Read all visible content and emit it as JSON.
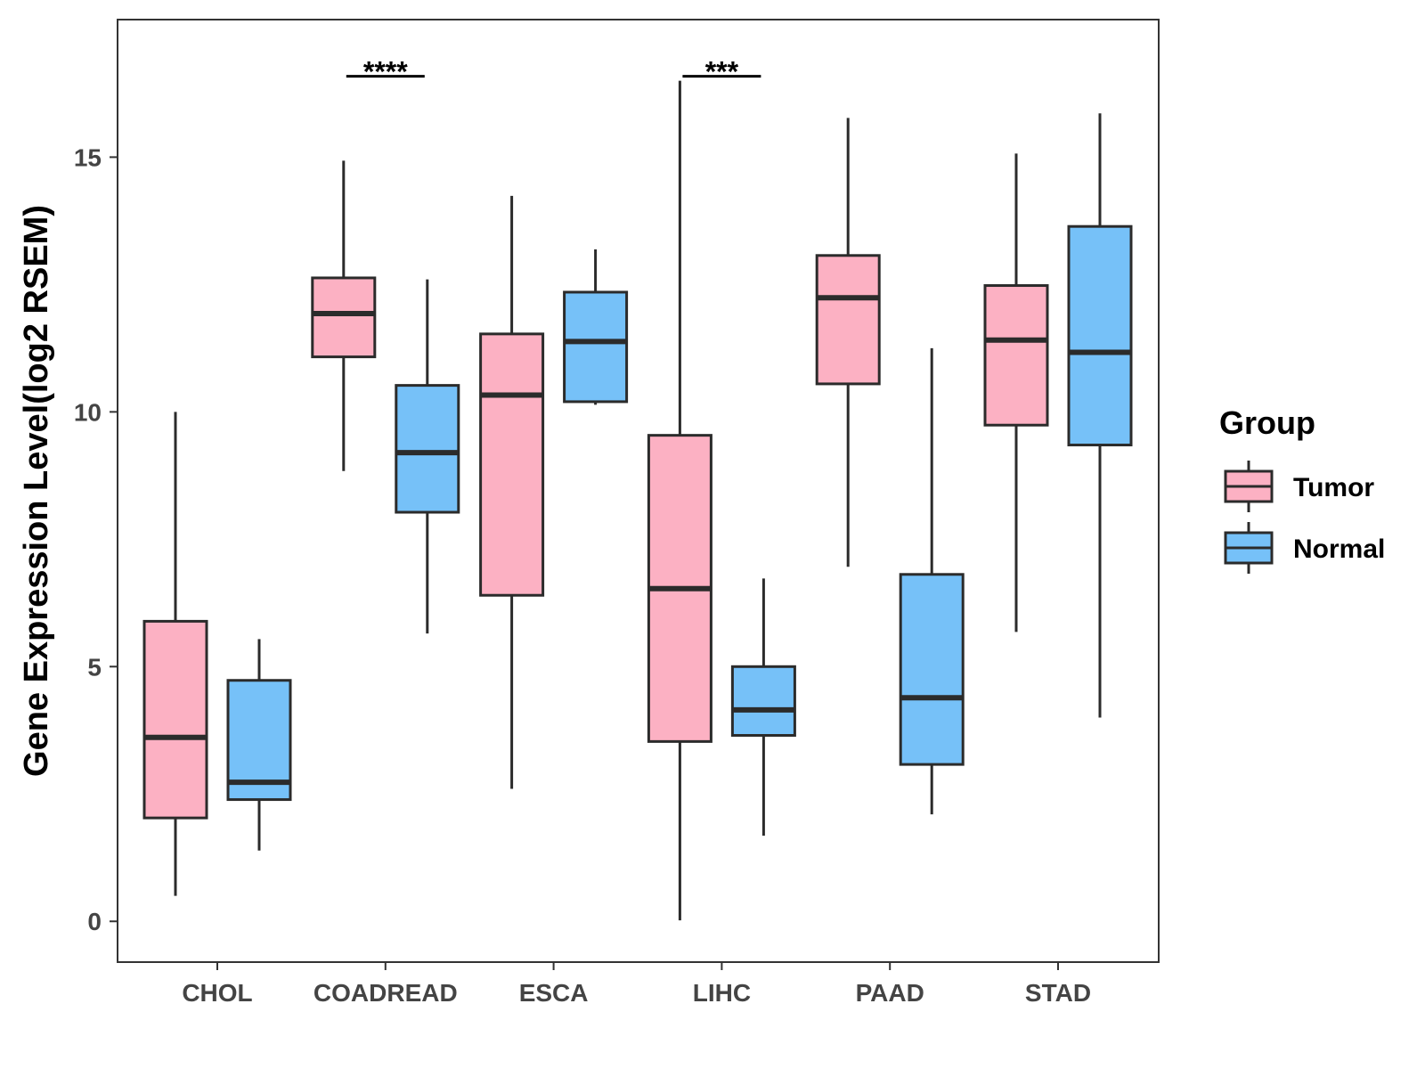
{
  "chart_data": {
    "type": "boxplot",
    "title": "",
    "xlabel": "",
    "ylabel": "Gene Expression Level(log2 RSEM)",
    "ylim": [
      -0.8,
      17.7
    ],
    "yticks": [
      0,
      5,
      10,
      15
    ],
    "categories": [
      "CHOL",
      "COADREAD",
      "ESCA",
      "LIHC",
      "PAAD",
      "STAD"
    ],
    "legend": {
      "title": "Group",
      "position": "right",
      "entries": [
        {
          "name": "Tumor",
          "color": "#fcb1c3"
        },
        {
          "name": "Normal",
          "color": "#76c1f8"
        }
      ]
    },
    "series": [
      {
        "name": "Tumor",
        "color": "#fcb1c3",
        "boxes": [
          {
            "category": "CHOL",
            "min": 0.5,
            "q1": 2.03,
            "median": 3.61,
            "q3": 5.89,
            "max": 10.0
          },
          {
            "category": "COADREAD",
            "min": 8.84,
            "q1": 11.08,
            "median": 11.93,
            "q3": 12.63,
            "max": 14.93
          },
          {
            "category": "ESCA",
            "min": 2.6,
            "q1": 6.4,
            "median": 10.33,
            "q3": 11.53,
            "max": 14.24
          },
          {
            "category": "LIHC",
            "min": 0.02,
            "q1": 3.53,
            "median": 6.53,
            "q3": 9.54,
            "max": 16.5
          },
          {
            "category": "PAAD",
            "min": 6.96,
            "q1": 10.55,
            "median": 12.24,
            "q3": 13.07,
            "max": 15.77
          },
          {
            "category": "STAD",
            "min": 5.68,
            "q1": 9.74,
            "median": 11.41,
            "q3": 12.48,
            "max": 15.07
          }
        ]
      },
      {
        "name": "Normal",
        "color": "#76c1f8",
        "boxes": [
          {
            "category": "CHOL",
            "min": 1.39,
            "q1": 2.39,
            "median": 2.73,
            "q3": 4.73,
            "max": 5.54
          },
          {
            "category": "COADREAD",
            "min": 5.65,
            "q1": 8.03,
            "median": 9.2,
            "q3": 10.52,
            "max": 12.6
          },
          {
            "category": "ESCA",
            "min": 10.14,
            "q1": 10.2,
            "median": 11.38,
            "q3": 12.35,
            "max": 13.19
          },
          {
            "category": "LIHC",
            "min": 1.68,
            "q1": 3.65,
            "median": 4.15,
            "q3": 5.0,
            "max": 6.73
          },
          {
            "category": "PAAD",
            "min": 2.1,
            "q1": 3.08,
            "median": 4.39,
            "q3": 6.81,
            "max": 11.25
          },
          {
            "category": "STAD",
            "min": 4.0,
            "q1": 9.35,
            "median": 11.17,
            "q3": 13.64,
            "max": 15.86
          }
        ]
      }
    ],
    "annotations": [
      {
        "category": "COADREAD",
        "label": "****",
        "y": 16.5
      },
      {
        "category": "LIHC",
        "label": "***",
        "y": 16.5
      }
    ]
  }
}
